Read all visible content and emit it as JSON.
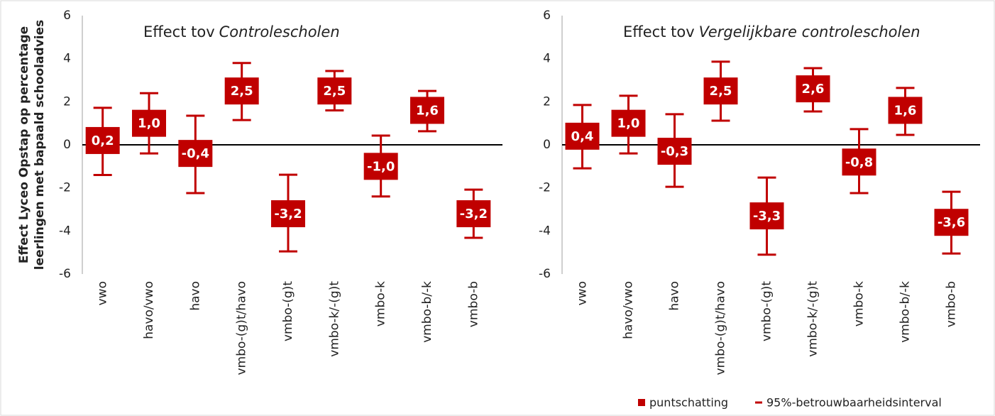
{
  "y_label": [
    "Effect Lyceo Opstap op percentage",
    "leerlingen met bapaald schooladvies"
  ],
  "chart_data": [
    {
      "type": "errorbar",
      "title": "Effect tov",
      "title_emphasis": "Controlescholen",
      "categories": [
        "vwo",
        "havo/vwo",
        "havo",
        "vmbo-(g)t/havo",
        "vmbo-(g)t",
        "vmbo-k/-(g)t",
        "vmbo-k",
        "vmbo-b/-k",
        "vmbo-b"
      ],
      "ylim": [
        -6,
        6
      ],
      "yticks": [
        -6,
        -4,
        -2,
        0,
        2,
        4,
        6
      ],
      "color": "#c00000",
      "series": [
        {
          "name": "puntschatting",
          "values": [
            0.2,
            1.0,
            -0.4,
            2.5,
            -3.2,
            2.5,
            -1.0,
            1.6,
            -3.2
          ],
          "value_labels": [
            "0,2",
            "1,0",
            "-0,4",
            "2,5",
            "-3,2",
            "2,5",
            "-1,0",
            "1,6",
            "-3,2"
          ]
        },
        {
          "name": "95%-betrouwbaarheidsinterval",
          "lower": [
            -1.4,
            -0.4,
            -2.24,
            1.15,
            -4.95,
            1.6,
            -2.4,
            0.63,
            -4.32
          ],
          "upper": [
            1.72,
            2.4,
            1.35,
            3.8,
            -1.39,
            3.43,
            0.43,
            2.5,
            -2.08
          ]
        }
      ]
    },
    {
      "type": "errorbar",
      "title": "Effect tov",
      "title_emphasis": "Vergelijkbare controlescholen",
      "categories": [
        "vwo",
        "havo/vwo",
        "havo",
        "vmbo-(g)t/havo",
        "vmbo-(g)t",
        "vmbo-k/-(g)t",
        "vmbo-k",
        "vmbo-b/-k",
        "vmbo-b"
      ],
      "ylim": [
        -6,
        6
      ],
      "yticks": [
        -6,
        -4,
        -2,
        0,
        2,
        4,
        6
      ],
      "color": "#c00000",
      "series": [
        {
          "name": "puntschatting",
          "values": [
            0.4,
            1.0,
            -0.3,
            2.5,
            -3.3,
            2.6,
            -0.8,
            1.6,
            -3.6
          ],
          "value_labels": [
            "0,4",
            "1,0",
            "-0,3",
            "2,5",
            "-3,3",
            "2,6",
            "-0,8",
            "1,6",
            "-3,6"
          ]
        },
        {
          "name": "95%-betrouwbaarheidsinterval",
          "lower": [
            -1.09,
            -0.4,
            -1.95,
            1.12,
            -5.1,
            1.55,
            -2.24,
            0.46,
            -5.05
          ],
          "upper": [
            1.85,
            2.28,
            1.42,
            3.86,
            -1.52,
            3.56,
            0.73,
            2.64,
            -2.18
          ]
        }
      ]
    }
  ]
}
